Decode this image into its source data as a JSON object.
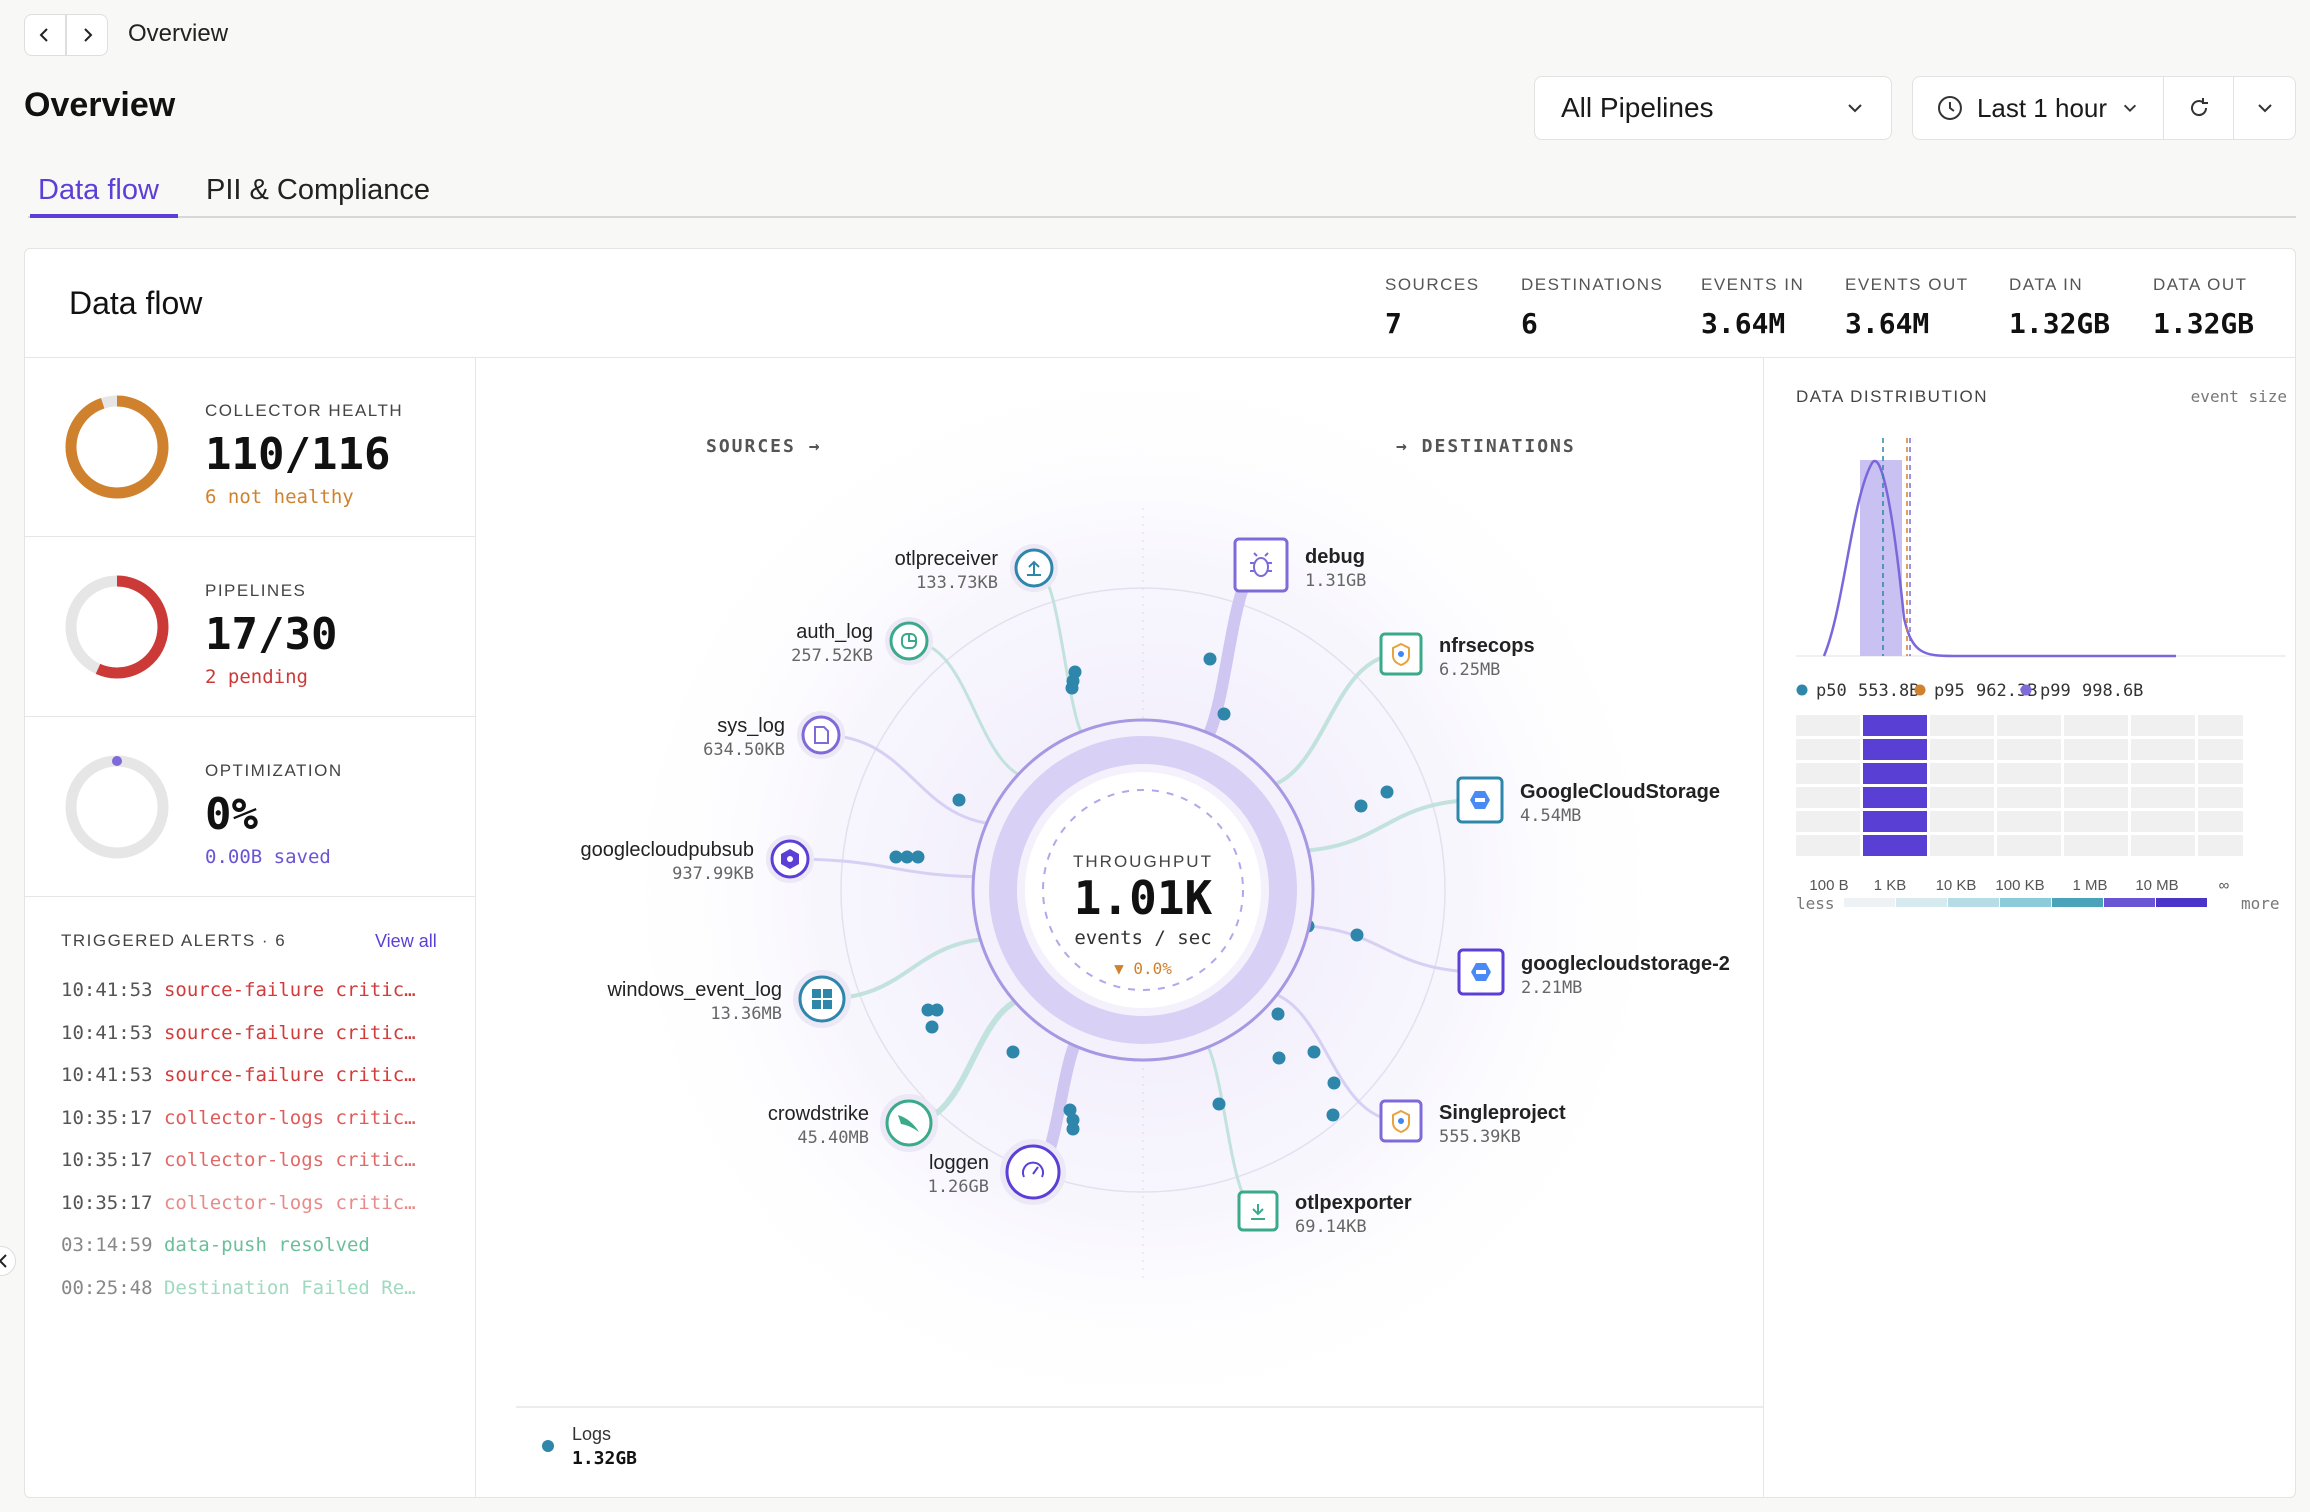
{
  "header": {
    "breadcrumb": "Overview",
    "title": "Overview",
    "pipeline_select": "All Pipelines",
    "time_select": "Last 1 hour"
  },
  "tabs": [
    {
      "label": "Data flow",
      "active": true
    },
    {
      "label": "PII & Compliance",
      "active": false
    }
  ],
  "card": {
    "title": "Data flow"
  },
  "stats": [
    {
      "label": "SOURCES",
      "value": "7"
    },
    {
      "label": "DESTINATIONS",
      "value": "6"
    },
    {
      "label": "EVENTS IN",
      "value": "3.64M"
    },
    {
      "label": "EVENTS OUT",
      "value": "3.64M"
    },
    {
      "label": "DATA IN",
      "value": "1.32GB"
    },
    {
      "label": "DATA OUT",
      "value": "1.32GB"
    }
  ],
  "kpis": {
    "health": {
      "label": "COLLECTOR HEALTH",
      "value": "110/116",
      "sub": "6 not healthy",
      "fraction": 0.948,
      "color": "#d0812d"
    },
    "pipelines": {
      "label": "PIPELINES",
      "value": "17/30",
      "sub": "2 pending",
      "fraction": 0.567,
      "color": "#cc3a37"
    },
    "optimization": {
      "label": "OPTIMIZATION",
      "value": "0%",
      "sub": "0.00B saved",
      "fraction": 0,
      "color": "#7f6ad9"
    }
  },
  "alerts": {
    "title": "TRIGGERED ALERTS · 6",
    "view_all": "View all",
    "items": [
      {
        "time": "10:41:53",
        "text": "source-failure critic…",
        "color": "#d23b3b"
      },
      {
        "time": "10:41:53",
        "text": "source-failure critic…",
        "color": "#d23b3b"
      },
      {
        "time": "10:41:53",
        "text": "source-failure critic…",
        "color": "#d23b3b"
      },
      {
        "time": "10:35:17",
        "text": "collector-logs critic…",
        "color": "#e05a5a"
      },
      {
        "time": "10:35:17",
        "text": "collector-logs critic…",
        "color": "#e06a6a"
      },
      {
        "time": "10:35:17",
        "text": "collector-logs critic…",
        "color": "#e88a8a"
      },
      {
        "time": "03:14:59",
        "text": "data-push resolved",
        "color": "#6bbf9a"
      },
      {
        "time": "00:25:48",
        "text": "Destination Failed Re…",
        "color": "#9fd9c0"
      }
    ]
  },
  "flow": {
    "sources_label": "SOURCES →",
    "destinations_label": "→ DESTINATIONS",
    "throughput_label": "THROUGHPUT",
    "throughput_value": "1.01K",
    "throughput_unit": "events / sec",
    "throughput_change": "▼ 0.0%",
    "sources": [
      {
        "name": "otlpreceiver",
        "value": "133.73KB",
        "icon": "upload-icon"
      },
      {
        "name": "auth_log",
        "value": "257.52KB",
        "icon": "log-icon"
      },
      {
        "name": "sys_log",
        "value": "634.50KB",
        "icon": "file-icon"
      },
      {
        "name": "googlecloudpubsub",
        "value": "937.99KB",
        "icon": "pubsub-icon"
      },
      {
        "name": "windows_event_log",
        "value": "13.36MB",
        "icon": "windows-icon"
      },
      {
        "name": "crowdstrike",
        "value": "45.40MB",
        "icon": "crowdstrike-icon"
      },
      {
        "name": "loggen",
        "value": "1.26GB",
        "icon": "gauge-icon"
      }
    ],
    "destinations": [
      {
        "name": "debug",
        "value": "1.31GB",
        "icon": "bug-icon"
      },
      {
        "name": "nfrsecops",
        "value": "6.25MB",
        "icon": "shield-icon"
      },
      {
        "name": "GoogleCloudStorage",
        "value": "4.54MB",
        "icon": "gcs-icon"
      },
      {
        "name": "googlecloudstorage-2",
        "value": "2.21MB",
        "icon": "gcs-icon"
      },
      {
        "name": "Singleproject",
        "value": "555.39KB",
        "icon": "shield-icon"
      },
      {
        "name": "otlpexporter",
        "value": "69.14KB",
        "icon": "download-icon"
      }
    ],
    "legend": {
      "label": "Logs",
      "value": "1.32GB",
      "color": "#2e86ab"
    }
  },
  "distribution": {
    "title": "DATA DISTRIBUTION",
    "mode": "event size",
    "percentiles": [
      {
        "label": "p50",
        "value": "553.8B",
        "color": "#2e86ab"
      },
      {
        "label": "p95",
        "value": "962.3B",
        "color": "#d0812d"
      },
      {
        "label": "p99",
        "value": "998.6B",
        "color": "#7f6ad9"
      }
    ],
    "buckets": [
      "100 B",
      "1 KB",
      "10 KB",
      "100 KB",
      "1 MB",
      "10 MB",
      "∞"
    ],
    "less": "less",
    "more": "more"
  },
  "colors": {
    "accent": "#5b3fd6",
    "flow": "#2e86ab"
  }
}
